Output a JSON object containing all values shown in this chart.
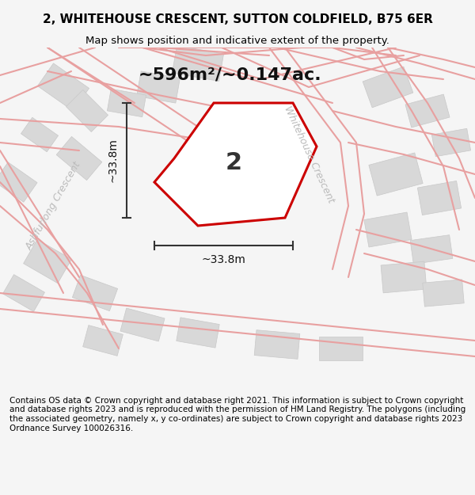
{
  "title_line1": "2, WHITEHOUSE CRESCENT, SUTTON COLDFIELD, B75 6ER",
  "title_line2": "Map shows position and indicative extent of the property.",
  "area_label": "~596m²/~0.147ac.",
  "number_label": "2",
  "dim_horizontal": "~33.8m",
  "dim_vertical": "~33.8m",
  "road_label_1": "Whitehouse Crescent",
  "road_label_2": "Ashfurlong Crescent",
  "footer_text": "Contains OS data © Crown copyright and database right 2021. This information is subject to Crown copyright and database rights 2023 and is reproduced with the permission of HM Land Registry. The polygons (including the associated geometry, namely x, y co-ordinates) are subject to Crown copyright and database rights 2023 Ordnance Survey 100026316.",
  "bg_color": "#f5f5f5",
  "map_bg": "#f0f0f0",
  "plot_color": "#cc0000",
  "plot_fill": "#ffffff",
  "road_line_color": "#e8a0a0",
  "building_color": "#d8d8d8",
  "building_border": "#cccccc",
  "dim_line_color": "#333333",
  "title_color": "#000000",
  "road_text_color": "#bbbbbb",
  "footer_color": "#000000"
}
